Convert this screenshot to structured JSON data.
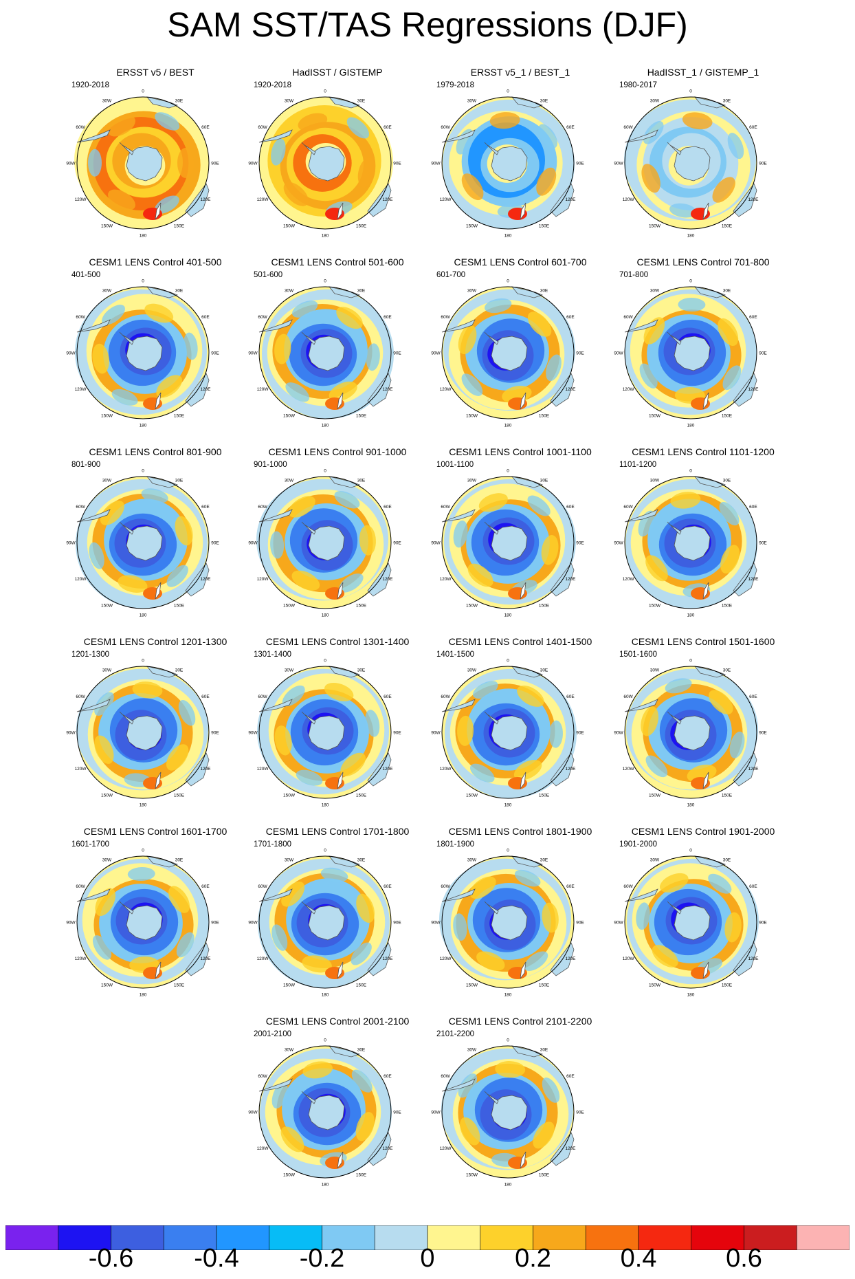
{
  "title": "SAM SST/TAS Regressions (DJF)",
  "colors": {
    "land": "#b7dcef",
    "levels": [
      "#7a22ee",
      "#1d13f2",
      "#3d5fe0",
      "#3a7ff0",
      "#2196ff",
      "#07bcf6",
      "#7fc9f3",
      "#b7dcef",
      "#fff58f",
      "#fdd12b",
      "#f7a81b",
      "#f7720f",
      "#f52810",
      "#e5040c",
      "#cb1d1f",
      "#fcb3b3"
    ]
  },
  "panels": [
    {
      "title": "ERSST v5 / BEST",
      "period": "1920-2018"
    },
    {
      "title": "HadISST / GISTEMP",
      "period": "1920-2018"
    },
    {
      "title": "ERSST v5_1 / BEST_1",
      "period": "1979-2018"
    },
    {
      "title": "HadISST_1 / GISTEMP_1",
      "period": "1980-2017"
    },
    {
      "title": "CESM1 LENS Control 401-500",
      "period": "401-500"
    },
    {
      "title": "CESM1 LENS Control 501-600",
      "period": "501-600"
    },
    {
      "title": "CESM1 LENS Control 601-700",
      "period": "601-700"
    },
    {
      "title": "CESM1 LENS Control 701-800",
      "period": "701-800"
    },
    {
      "title": "CESM1 LENS Control 801-900",
      "period": "801-900"
    },
    {
      "title": "CESM1 LENS Control 901-1000",
      "period": "901-1000"
    },
    {
      "title": "CESM1 LENS Control 1001-1100",
      "period": "1001-1100"
    },
    {
      "title": "CESM1 LENS Control 1101-1200",
      "period": "1101-1200"
    },
    {
      "title": "CESM1 LENS Control 1201-1300",
      "period": "1201-1300"
    },
    {
      "title": "CESM1 LENS Control 1301-1400",
      "period": "1301-1400"
    },
    {
      "title": "CESM1 LENS Control 1401-1500",
      "period": "1401-1500"
    },
    {
      "title": "CESM1 LENS Control 1501-1600",
      "period": "1501-1600"
    },
    {
      "title": "CESM1 LENS Control 1601-1700",
      "period": "1601-1700"
    },
    {
      "title": "CESM1 LENS Control 1701-1800",
      "period": "1701-1800"
    },
    {
      "title": "CESM1 LENS Control 1801-1900",
      "period": "1801-1900"
    },
    {
      "title": "CESM1 LENS Control 1901-2000",
      "period": "1901-2000"
    },
    {
      "title": "CESM1 LENS Control 2001-2100",
      "period": "2001-2100"
    },
    {
      "title": "CESM1 LENS Control 2101-2200",
      "period": "2101-2200"
    }
  ],
  "lon_labels": [
    "0",
    "30E",
    "60E",
    "90E",
    "120E",
    "150E",
    "180",
    "150W",
    "120W",
    "90W",
    "60W",
    "30W"
  ],
  "colorbar": {
    "labels": [
      "-0.6",
      "-0.4",
      "-0.2",
      "0",
      "0.2",
      "0.4",
      "0.6"
    ]
  }
}
